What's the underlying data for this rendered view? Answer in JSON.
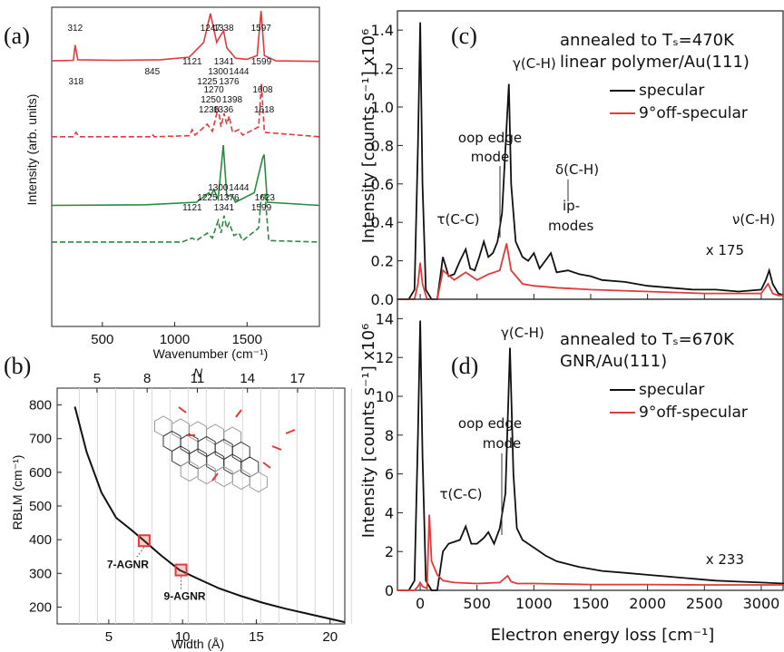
{
  "panel_labels": {
    "a": "(a)",
    "b": "(b)",
    "c": "(c)",
    "d": "(d)"
  },
  "colors": {
    "red": "#e03a3a",
    "green": "#2a8a3e",
    "black": "#111111",
    "gray": "#555555"
  },
  "chart_data": [
    {
      "id": "a",
      "type": "line",
      "xlabel": "Wavenumber (cm⁻¹)",
      "ylabel": "Intensity (arb. units)",
      "xlim": [
        150,
        2000
      ],
      "xticks": [
        "500",
        "1000",
        "1500"
      ],
      "series": [
        {
          "color": "red",
          "dash": false,
          "x": [
            150,
            300,
            312,
            330,
            600,
            900,
            1100,
            1200,
            1247,
            1290,
            1310,
            1338,
            1360,
            1420,
            1500,
            1570,
            1597,
            1620,
            1700,
            2000
          ],
          "y": [
            0.05,
            0.06,
            0.35,
            0.07,
            0.06,
            0.07,
            0.12,
            0.4,
            0.95,
            0.4,
            0.5,
            0.62,
            0.3,
            0.1,
            0.08,
            0.15,
            1.0,
            0.15,
            0.05,
            0.04
          ],
          "labels": [
            "312",
            "1247",
            "1338",
            "1597"
          ]
        },
        {
          "color": "red",
          "dash": true,
          "x": [
            150,
            300,
            318,
            340,
            830,
            845,
            860,
            1100,
            1121,
            1140,
            1225,
            1260,
            1300,
            1320,
            1341,
            1360,
            1376,
            1400,
            1444,
            1470,
            1580,
            1599,
            1620,
            2000
          ],
          "y": [
            0.02,
            0.02,
            0.1,
            0.02,
            0.02,
            0.06,
            0.02,
            0.04,
            0.15,
            0.05,
            0.25,
            0.12,
            0.55,
            0.2,
            0.45,
            0.25,
            0.4,
            0.1,
            0.15,
            0.05,
            0.2,
            1.0,
            0.1,
            0.02
          ],
          "labels": [
            "318",
            "845",
            "1121",
            "1225",
            "1300",
            "1341",
            "1376",
            "1444",
            "1599"
          ]
        },
        {
          "color": "green",
          "dash": false,
          "x": [
            150,
            800,
            1150,
            1236,
            1250,
            1270,
            1300,
            1336,
            1360,
            1398,
            1420,
            1550,
            1608,
            1618,
            1640,
            2000
          ],
          "y": [
            0.05,
            0.06,
            0.1,
            0.25,
            0.2,
            0.3,
            0.15,
            1.0,
            0.2,
            0.2,
            0.1,
            0.25,
            0.8,
            0.85,
            0.1,
            0.05
          ],
          "labels": [
            "1236",
            "1250",
            "1270",
            "1336",
            "1398",
            "1608",
            "1618"
          ]
        },
        {
          "color": "green",
          "dash": true,
          "x": [
            150,
            1050,
            1121,
            1150,
            1225,
            1260,
            1300,
            1320,
            1341,
            1360,
            1376,
            1410,
            1444,
            1470,
            1580,
            1599,
            1623,
            1650,
            2000
          ],
          "y": [
            0.02,
            0.02,
            0.1,
            0.05,
            0.2,
            0.1,
            0.45,
            0.2,
            0.55,
            0.3,
            0.4,
            0.15,
            0.2,
            0.05,
            0.3,
            0.95,
            1.0,
            0.05,
            0.02
          ],
          "labels": [
            "1121",
            "1225",
            "1300",
            "1341",
            "1376",
            "1444",
            "1599",
            "1623"
          ]
        }
      ]
    },
    {
      "id": "b",
      "type": "scatter",
      "xlabel": "Width (Å)",
      "ylabel": "RBLM (cm⁻¹)",
      "top_axis_label": "N",
      "xlim": [
        1.5,
        21
      ],
      "ylim": [
        150,
        850
      ],
      "xticks": [
        "5",
        "10",
        "15",
        "20"
      ],
      "yticks": [
        "200",
        "300",
        "400",
        "500",
        "600",
        "700",
        "800"
      ],
      "top_ticks": [
        "5",
        "8",
        "11",
        "14",
        "17"
      ],
      "curve": {
        "x": [
          2.7,
          3.5,
          4.5,
          5.5,
          6.5,
          7.4,
          8.5,
          9.8,
          11,
          12.5,
          14,
          15.5,
          17,
          18.5,
          20,
          21
        ],
        "y": [
          795,
          660,
          540,
          465,
          430,
          397,
          355,
          310,
          285,
          255,
          232,
          212,
          195,
          180,
          165,
          155
        ]
      },
      "points": [
        {
          "x": 7.4,
          "y": 397,
          "label": "7-AGNR"
        },
        {
          "x": 9.9,
          "y": 310,
          "label": "9-AGNR"
        }
      ]
    },
    {
      "id": "c",
      "type": "line",
      "ylabel": "Intensity [counts s⁻¹] x10⁶",
      "xlim": [
        -200,
        3200
      ],
      "ylim": [
        0,
        1.5
      ],
      "yticks": [
        "0.0",
        "0.2",
        "0.4",
        "0.6",
        "0.8",
        "1.0",
        "1.2",
        "1.4"
      ],
      "title_lines": [
        "annealed to Tₛ=470K",
        "linear polymer/Au(111)"
      ],
      "legend": [
        "specular",
        "9°off-specular"
      ],
      "scale_note": "x 175",
      "annotations": [
        "τ(C-C)",
        "oop edge",
        "mode",
        "γ(C-H)",
        "δ(C-H)",
        "ip-",
        "modes",
        "ν(C-H)"
      ],
      "series": [
        {
          "name": "specular",
          "color": "black",
          "x": [
            -200,
            -100,
            -50,
            -20,
            0,
            20,
            50,
            100,
            150,
            200,
            250,
            300,
            350,
            400,
            440,
            480,
            520,
            560,
            600,
            640,
            680,
            720,
            760,
            780,
            800,
            840,
            900,
            950,
            1000,
            1050,
            1100,
            1150,
            1200,
            1300,
            1400,
            1500,
            1600,
            1800,
            2000,
            2200,
            2400,
            2600,
            2800,
            3000,
            3040,
            3070,
            3100,
            3150,
            3200
          ],
          "y": [
            0,
            0,
            0.05,
            0.8,
            1.44,
            0.6,
            0.05,
            0,
            0,
            0.22,
            0.12,
            0.13,
            0.2,
            0.26,
            0.16,
            0.15,
            0.22,
            0.3,
            0.22,
            0.24,
            0.3,
            0.45,
            0.9,
            1.12,
            0.6,
            0.3,
            0.22,
            0.2,
            0.24,
            0.16,
            0.2,
            0.24,
            0.14,
            0.15,
            0.13,
            0.12,
            0.1,
            0.09,
            0.07,
            0.06,
            0.05,
            0.05,
            0.04,
            0.05,
            0.1,
            0.15,
            0.08,
            0.03,
            0.02
          ]
        },
        {
          "name": "9°off-specular",
          "color": "red",
          "x": [
            -200,
            -50,
            -20,
            0,
            20,
            60,
            100,
            150,
            200,
            300,
            400,
            500,
            600,
            700,
            760,
            800,
            900,
            1000,
            1200,
            1500,
            2000,
            2500,
            3000,
            3060,
            3100,
            3150,
            3200
          ],
          "y": [
            0,
            0,
            0.08,
            0.19,
            0.08,
            0,
            0,
            0,
            0.15,
            0.1,
            0.14,
            0.1,
            0.13,
            0.15,
            0.29,
            0.15,
            0.08,
            0.07,
            0.06,
            0.05,
            0.04,
            0.03,
            0.03,
            0.08,
            0.03,
            0.02,
            0.02
          ]
        }
      ]
    },
    {
      "id": "d",
      "type": "line",
      "xlabel": "Electron energy loss [cm⁻¹]",
      "ylabel": "Intensity [counts s⁻¹] x10⁶",
      "xlim": [
        -200,
        3200
      ],
      "ylim": [
        0,
        15
      ],
      "xticks": [
        "0",
        "500",
        "1000",
        "1500",
        "2000",
        "2500",
        "3000"
      ],
      "yticks": [
        "0",
        "2",
        "4",
        "6",
        "8",
        "10",
        "12",
        "14"
      ],
      "title_lines": [
        "annealed to Tₛ=670K",
        "GNR/Au(111)"
      ],
      "legend": [
        "specular",
        "9°off-specular"
      ],
      "scale_note": "x 233",
      "annotations": [
        "τ(C-C)",
        "oop edge",
        "mode",
        "γ(C-H)"
      ],
      "series": [
        {
          "name": "specular",
          "color": "black",
          "x": [
            -200,
            -100,
            -50,
            -20,
            0,
            20,
            50,
            100,
            150,
            200,
            250,
            300,
            350,
            400,
            450,
            500,
            560,
            600,
            650,
            700,
            750,
            790,
            820,
            850,
            900,
            1000,
            1100,
            1200,
            1400,
            1600,
            1800,
            2000,
            2200,
            2400,
            2600,
            2800,
            3000,
            3200
          ],
          "y": [
            0,
            0,
            0.5,
            8,
            13.9,
            7,
            0.5,
            0,
            0,
            2,
            2.4,
            2.5,
            2.6,
            3.3,
            2.4,
            2.4,
            2.7,
            3,
            2.4,
            3.2,
            5,
            12.5,
            6,
            3.2,
            2.6,
            2.2,
            1.8,
            1.5,
            1.2,
            1.0,
            0.9,
            0.8,
            0.7,
            0.6,
            0.5,
            0.45,
            0.4,
            0.35
          ]
        },
        {
          "name": "9°off-specular",
          "color": "red",
          "x": [
            -200,
            -50,
            -20,
            0,
            20,
            60,
            80,
            100,
            150,
            200,
            300,
            500,
            700,
            770,
            800,
            850,
            1000,
            1500,
            2000,
            2500,
            3000,
            3200
          ],
          "y": [
            0,
            0,
            0.2,
            0.4,
            0.2,
            0.1,
            3.9,
            1.5,
            0.8,
            0.5,
            0.4,
            0.35,
            0.4,
            0.75,
            0.45,
            0.35,
            0.35,
            0.3,
            0.3,
            0.28,
            0.28,
            0.28
          ]
        }
      ]
    }
  ]
}
